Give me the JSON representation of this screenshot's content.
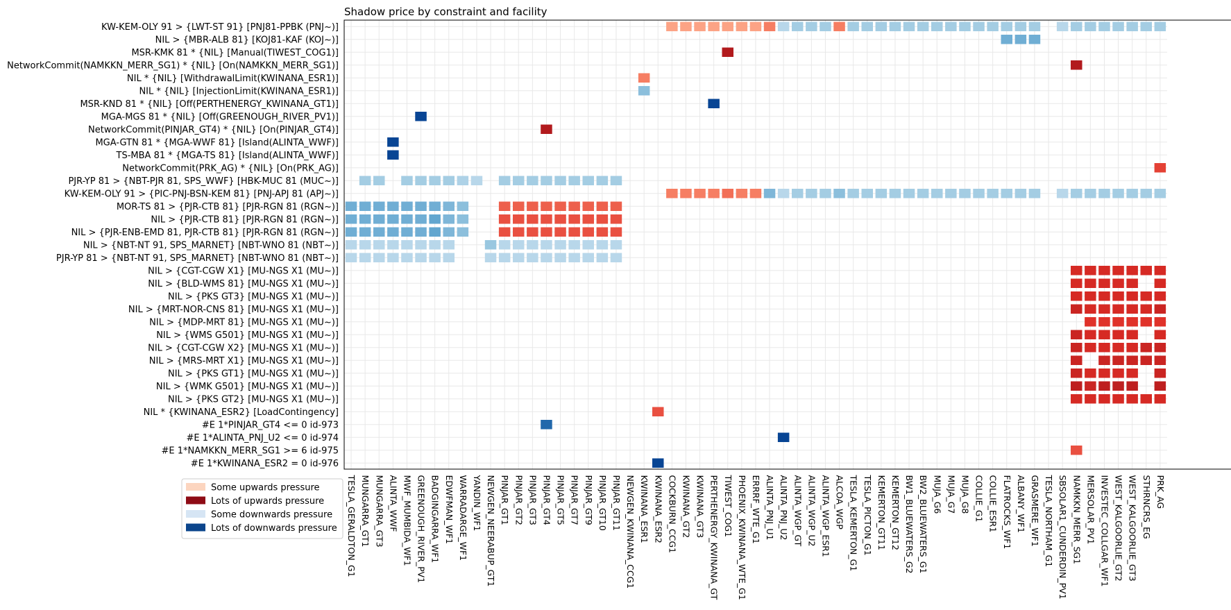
{
  "chart_data": {
    "type": "heatmap",
    "title": "Shadow price by constraint and facility",
    "rows": [
      "KW-KEM-OLY 91 > {LWT-ST 91} [PNJ81-PPBK (PNJ~)]",
      "NIL > {MBR-ALB 81} [KOJ81-KAF (KOJ~)]",
      "MSR-KMK 81 * {NIL} [Manual(TIWEST_COG1)]",
      "NetworkCommit(NAMKKN_MERR_SG1) * {NIL} [On(NAMKKN_MERR_SG1)]",
      "NIL * {NIL} [WithdrawalLimit(KWINANA_ESR1)]",
      "NIL * {NIL} [InjectionLimit(KWINANA_ESR1)]",
      "MSR-KND 81 * {NIL} [Off(PERTHENERGY_KWINANA_GT1)]",
      "MGA-MGS 81 * {NIL} [Off(GREENOUGH_RIVER_PV1)]",
      "NetworkCommit(PINJAR_GT4) * {NIL} [On(PINJAR_GT4)]",
      "MGA-GTN 81 * {MGA-WWF 81} [Island(ALINTA_WWF)]",
      "TS-MBA 81 * {MGA-TS 81} [Island(ALINTA_WWF)]",
      "NetworkCommit(PRK_AG) * {NIL} [On(PRK_AG)]",
      "PJR-YP 81 > {NBT-PJR 81, SPS_WWF} [HBK-MUC 81 (MUC~)]",
      "KW-KEM-OLY 91 > {PIC-PNJ-BSN-KEM 81} [PNJ-APJ 81 (APJ~)]",
      "MOR-TS 81 > {PJR-CTB 81} [PJR-RGN 81 (RGN~)]",
      "NIL > {PJR-CTB 81} [PJR-RGN 81 (RGN~)]",
      "NIL > {PJR-ENB-EMD 81, PJR-CTB 81} [PJR-RGN 81 (RGN~)]",
      "NIL > {NBT-NT 91, SPS_MARNET} [NBT-WNO 81 (NBT~)]",
      "PJR-YP 81 > {NBT-NT 91, SPS_MARNET} [NBT-WNO 81 (NBT~)]",
      "NIL > {CGT-CGW X1} [MU-NGS X1 (MU~)]",
      "NIL > {BLD-WMS 81} [MU-NGS X1 (MU~)]",
      "NIL > {PKS GT3} [MU-NGS X1 (MU~)]",
      "NIL > {MRT-NOR-CNS 81} [MU-NGS X1 (MU~)]",
      "NIL > {MDP-MRT 81} [MU-NGS X1 (MU~)]",
      "NIL > {WMS G501} [MU-NGS X1 (MU~)]",
      "NIL > {CGT-CGW X2} [MU-NGS X1 (MU~)]",
      "NIL > {MRS-MRT X1} [MU-NGS X1 (MU~)]",
      "NIL > {PKS GT1} [MU-NGS X1 (MU~)]",
      "NIL > {WMK G501} [MU-NGS X1 (MU~)]",
      "NIL > {PKS GT2} [MU-NGS X1 (MU~)]",
      "NIL * {KWINANA_ESR2} [LoadContingency]",
      "#E 1*PINJAR_GT4 <= 0 id-973",
      "#E 1*ALINTA_PNJ_U2 <= 0 id-974",
      "#E 1*NAMKKN_MERR_SG1 >= 6 id-975",
      "#E 1*KWINANA_ESR2 = 0 id-976"
    ],
    "columns": [
      "TESLA_GERALDTON_G1",
      "MUNGARRA_GT1",
      "MUNGARRA_GT3",
      "ALINTA_WWF",
      "MWF_MUMBIDA_WF1",
      "GREENOUGH_RIVER_PV1",
      "BADGINGARRA_WF1",
      "EDWFMAN_WF1",
      "WARRADARGE_WF1",
      "YANDIN_WF1",
      "NEWGEN_NEERABUP_GT1",
      "PINJAR_GT1",
      "PINJAR_GT2",
      "PINJAR_GT3",
      "PINJAR_GT4",
      "PINJAR_GT5",
      "PINJAR_GT7",
      "PINJAR_GT9",
      "PINJAR_GT10",
      "PINJAR_GT11",
      "NEWGEN_KWINANA_CCG1",
      "KWINANA_ESR1",
      "KWINANA_ESR2",
      "COCKBURN_CCG1",
      "KWINANA_GT2",
      "KWINANA_GT3",
      "PERTHENERGY_KWINANA_GT",
      "TIWEST_COG1",
      "PHOENIX_KWINANA_WTE_G1",
      "ERRRF_WTE_G1",
      "ALINTA_PNJ_U1",
      "ALINTA_PNJ_U2",
      "ALINTA_WGP_GT",
      "ALINTA_WGP_U2",
      "ALINTA_WGP_ESR1",
      "ALCOA_WGP",
      "TESLA_KEMERTON_G1",
      "TESLA_PICTON_G1",
      "KEMERTON_GT11",
      "KEMERTON_GT12",
      "BW1_BLUEWATERS_G2",
      "BW2_BLUEWATERS_G1",
      "MUJA_G6",
      "MUJA_G7",
      "MUJA_G8",
      "COLLIE_G1",
      "COLLIE_ESR1",
      "FLATROCKS_WF1",
      "ALBANY_WF1",
      "GRASMERE_WF1",
      "TESLA_NORTHAM_G1",
      "SBSOLAR1_CUNDERDIN_PV1",
      "NAMKKN_MERR_SG1",
      "MERSOLAR_PV1",
      "INVESTEC_COLLGAR_WF1",
      "WEST_KALGOORLIE_GT2",
      "WEST_KALGOORLIE_GT3",
      "STHRNCRS_EG",
      "PRK_AG"
    ],
    "legend": [
      {
        "label": "Some upwards pressure",
        "color": "#fcd5bf"
      },
      {
        "label": "Lots of upwards pressure",
        "color": "#8e0b15"
      },
      {
        "label": "Some downwards pressure",
        "color": "#d6e5f4"
      },
      {
        "label": "Lots of downwards pressure",
        "color": "#0b458c"
      }
    ],
    "legend_position": "lower-left",
    "grid": true,
    "value_scale": "diverging: negative = upwards pressure (reds), positive = downwards pressure (blues); magnitude 0-1",
    "cells": [
      [
        0,
        23,
        -0.25
      ],
      [
        0,
        24,
        -0.25
      ],
      [
        0,
        25,
        -0.25
      ],
      [
        0,
        26,
        -0.25
      ],
      [
        0,
        27,
        -0.25
      ],
      [
        0,
        28,
        -0.25
      ],
      [
        0,
        29,
        -0.25
      ],
      [
        0,
        30,
        -0.4
      ],
      [
        0,
        31,
        0.2
      ],
      [
        0,
        32,
        0.3
      ],
      [
        0,
        33,
        0.3
      ],
      [
        0,
        34,
        0.3
      ],
      [
        0,
        35,
        -0.4
      ],
      [
        0,
        36,
        0.3
      ],
      [
        0,
        37,
        0.3
      ],
      [
        0,
        38,
        0.3
      ],
      [
        0,
        39,
        0.3
      ],
      [
        0,
        40,
        0.3
      ],
      [
        0,
        41,
        0.3
      ],
      [
        0,
        42,
        0.3
      ],
      [
        0,
        43,
        0.3
      ],
      [
        0,
        44,
        0.3
      ],
      [
        0,
        45,
        0.3
      ],
      [
        0,
        46,
        0.3
      ],
      [
        0,
        47,
        0.3
      ],
      [
        0,
        48,
        0.3
      ],
      [
        0,
        49,
        0.3
      ],
      [
        0,
        51,
        0.2
      ],
      [
        0,
        52,
        0.3
      ],
      [
        0,
        53,
        0.3
      ],
      [
        0,
        54,
        0.3
      ],
      [
        0,
        55,
        0.3
      ],
      [
        0,
        56,
        0.3
      ],
      [
        0,
        57,
        0.3
      ],
      [
        0,
        58,
        0.3
      ],
      [
        1,
        47,
        0.5
      ],
      [
        1,
        48,
        0.5
      ],
      [
        1,
        49,
        0.5
      ],
      [
        2,
        27,
        -0.85
      ],
      [
        3,
        52,
        -0.85
      ],
      [
        4,
        21,
        -0.4
      ],
      [
        5,
        21,
        0.4
      ],
      [
        6,
        26,
        1.0
      ],
      [
        7,
        5,
        1.0
      ],
      [
        8,
        14,
        -0.85
      ],
      [
        9,
        3,
        1.0
      ],
      [
        10,
        3,
        1.0
      ],
      [
        11,
        58,
        -0.6
      ],
      [
        12,
        1,
        0.3
      ],
      [
        12,
        2,
        0.3
      ],
      [
        12,
        4,
        0.3
      ],
      [
        12,
        5,
        0.3
      ],
      [
        12,
        6,
        0.3
      ],
      [
        12,
        7,
        0.3
      ],
      [
        12,
        8,
        0.25
      ],
      [
        12,
        9,
        0.2
      ],
      [
        12,
        11,
        0.3
      ],
      [
        12,
        12,
        0.3
      ],
      [
        12,
        13,
        0.3
      ],
      [
        12,
        14,
        0.3
      ],
      [
        12,
        15,
        0.3
      ],
      [
        12,
        16,
        0.3
      ],
      [
        12,
        17,
        0.3
      ],
      [
        12,
        18,
        0.3
      ],
      [
        12,
        19,
        0.3
      ],
      [
        13,
        23,
        -0.4
      ],
      [
        13,
        24,
        -0.4
      ],
      [
        13,
        25,
        -0.4
      ],
      [
        13,
        26,
        -0.4
      ],
      [
        13,
        27,
        -0.45
      ],
      [
        13,
        28,
        -0.4
      ],
      [
        13,
        29,
        -0.4
      ],
      [
        13,
        30,
        0.45
      ],
      [
        13,
        31,
        0.2
      ],
      [
        13,
        32,
        0.3
      ],
      [
        13,
        33,
        0.3
      ],
      [
        13,
        34,
        0.3
      ],
      [
        13,
        35,
        0.4
      ],
      [
        13,
        36,
        0.3
      ],
      [
        13,
        37,
        0.3
      ],
      [
        13,
        38,
        0.3
      ],
      [
        13,
        39,
        0.3
      ],
      [
        13,
        40,
        0.3
      ],
      [
        13,
        41,
        0.3
      ],
      [
        13,
        42,
        0.3
      ],
      [
        13,
        43,
        0.3
      ],
      [
        13,
        44,
        0.3
      ],
      [
        13,
        45,
        0.3
      ],
      [
        13,
        46,
        0.3
      ],
      [
        13,
        47,
        0.3
      ],
      [
        13,
        48,
        0.3
      ],
      [
        13,
        49,
        0.3
      ],
      [
        13,
        51,
        0.2
      ],
      [
        13,
        52,
        0.3
      ],
      [
        13,
        53,
        0.3
      ],
      [
        13,
        54,
        0.3
      ],
      [
        13,
        55,
        0.3
      ],
      [
        13,
        56,
        0.3
      ],
      [
        13,
        57,
        0.3
      ],
      [
        13,
        58,
        0.3
      ],
      [
        14,
        0,
        0.5
      ],
      [
        14,
        1,
        0.5
      ],
      [
        14,
        2,
        0.5
      ],
      [
        14,
        3,
        0.5
      ],
      [
        14,
        4,
        0.5
      ],
      [
        14,
        5,
        0.5
      ],
      [
        14,
        6,
        0.5
      ],
      [
        14,
        7,
        0.45
      ],
      [
        14,
        8,
        0.4
      ],
      [
        14,
        11,
        -0.5
      ],
      [
        14,
        12,
        -0.5
      ],
      [
        14,
        13,
        -0.5
      ],
      [
        14,
        14,
        -0.5
      ],
      [
        14,
        15,
        -0.5
      ],
      [
        14,
        16,
        -0.5
      ],
      [
        14,
        17,
        -0.5
      ],
      [
        14,
        18,
        -0.5
      ],
      [
        14,
        19,
        -0.5
      ],
      [
        15,
        0,
        0.5
      ],
      [
        15,
        1,
        0.5
      ],
      [
        15,
        2,
        0.5
      ],
      [
        15,
        3,
        0.5
      ],
      [
        15,
        4,
        0.5
      ],
      [
        15,
        5,
        0.5
      ],
      [
        15,
        6,
        0.55
      ],
      [
        15,
        7,
        0.45
      ],
      [
        15,
        8,
        0.4
      ],
      [
        15,
        11,
        -0.55
      ],
      [
        15,
        12,
        -0.55
      ],
      [
        15,
        13,
        -0.55
      ],
      [
        15,
        14,
        -0.55
      ],
      [
        15,
        15,
        -0.55
      ],
      [
        15,
        16,
        -0.55
      ],
      [
        15,
        17,
        -0.55
      ],
      [
        15,
        18,
        -0.55
      ],
      [
        15,
        19,
        -0.55
      ],
      [
        16,
        0,
        0.5
      ],
      [
        16,
        1,
        0.5
      ],
      [
        16,
        2,
        0.5
      ],
      [
        16,
        3,
        0.5
      ],
      [
        16,
        4,
        0.5
      ],
      [
        16,
        5,
        0.5
      ],
      [
        16,
        6,
        0.55
      ],
      [
        16,
        7,
        0.45
      ],
      [
        16,
        8,
        0.4
      ],
      [
        16,
        11,
        -0.55
      ],
      [
        16,
        12,
        -0.55
      ],
      [
        16,
        13,
        -0.55
      ],
      [
        16,
        14,
        -0.55
      ],
      [
        16,
        15,
        -0.55
      ],
      [
        16,
        16,
        -0.55
      ],
      [
        16,
        17,
        -0.55
      ],
      [
        16,
        18,
        -0.55
      ],
      [
        16,
        19,
        -0.55
      ],
      [
        17,
        0,
        0.2
      ],
      [
        17,
        1,
        0.2
      ],
      [
        17,
        2,
        0.2
      ],
      [
        17,
        3,
        0.2
      ],
      [
        17,
        4,
        0.2
      ],
      [
        17,
        5,
        0.2
      ],
      [
        17,
        6,
        0.2
      ],
      [
        17,
        7,
        0.2
      ],
      [
        17,
        10,
        0.35
      ],
      [
        17,
        11,
        0.2
      ],
      [
        17,
        12,
        0.2
      ],
      [
        17,
        13,
        0.2
      ],
      [
        17,
        14,
        0.2
      ],
      [
        17,
        15,
        0.2
      ],
      [
        17,
        16,
        0.2
      ],
      [
        17,
        17,
        0.2
      ],
      [
        17,
        18,
        0.2
      ],
      [
        17,
        19,
        0.2
      ],
      [
        18,
        0,
        0.2
      ],
      [
        18,
        1,
        0.2
      ],
      [
        18,
        2,
        0.2
      ],
      [
        18,
        3,
        0.2
      ],
      [
        18,
        4,
        0.2
      ],
      [
        18,
        5,
        0.2
      ],
      [
        18,
        6,
        0.2
      ],
      [
        18,
        7,
        0.2
      ],
      [
        18,
        10,
        0.2
      ],
      [
        18,
        11,
        0.2
      ],
      [
        18,
        12,
        0.2
      ],
      [
        18,
        13,
        0.2
      ],
      [
        18,
        14,
        0.2
      ],
      [
        18,
        15,
        0.2
      ],
      [
        18,
        16,
        0.2
      ],
      [
        18,
        17,
        0.2
      ],
      [
        18,
        18,
        0.2
      ],
      [
        18,
        19,
        0.2
      ],
      [
        19,
        52,
        -0.7
      ],
      [
        19,
        53,
        -0.7
      ],
      [
        19,
        54,
        -0.7
      ],
      [
        19,
        55,
        -0.7
      ],
      [
        19,
        56,
        -0.7
      ],
      [
        19,
        57,
        -0.7
      ],
      [
        19,
        58,
        -0.7
      ],
      [
        20,
        52,
        -0.7
      ],
      [
        20,
        53,
        -0.7
      ],
      [
        20,
        54,
        -0.7
      ],
      [
        20,
        55,
        -0.7
      ],
      [
        20,
        56,
        -0.7
      ],
      [
        20,
        58,
        -0.7
      ],
      [
        21,
        52,
        -0.7
      ],
      [
        21,
        53,
        -0.7
      ],
      [
        21,
        54,
        -0.7
      ],
      [
        21,
        55,
        -0.7
      ],
      [
        21,
        56,
        -0.7
      ],
      [
        21,
        57,
        -0.7
      ],
      [
        21,
        58,
        -0.7
      ],
      [
        22,
        52,
        -0.75
      ],
      [
        22,
        53,
        -0.7
      ],
      [
        22,
        54,
        -0.7
      ],
      [
        22,
        55,
        -0.7
      ],
      [
        22,
        56,
        -0.7
      ],
      [
        22,
        57,
        -0.7
      ],
      [
        22,
        58,
        -0.75
      ],
      [
        23,
        53,
        -0.65
      ],
      [
        23,
        54,
        -0.65
      ],
      [
        23,
        55,
        -0.65
      ],
      [
        23,
        56,
        -0.65
      ],
      [
        23,
        57,
        -0.65
      ],
      [
        23,
        58,
        -0.65
      ],
      [
        24,
        52,
        -0.75
      ],
      [
        24,
        53,
        -0.7
      ],
      [
        24,
        54,
        -0.7
      ],
      [
        24,
        55,
        -0.7
      ],
      [
        24,
        56,
        -0.7
      ],
      [
        24,
        58,
        -0.7
      ],
      [
        25,
        52,
        -0.75
      ],
      [
        25,
        53,
        -0.7
      ],
      [
        25,
        54,
        -0.7
      ],
      [
        25,
        55,
        -0.7
      ],
      [
        25,
        56,
        -0.7
      ],
      [
        25,
        57,
        -0.75
      ],
      [
        25,
        58,
        -0.75
      ],
      [
        26,
        52,
        -0.75
      ],
      [
        26,
        54,
        -0.75
      ],
      [
        26,
        55,
        -0.75
      ],
      [
        26,
        56,
        -0.75
      ],
      [
        26,
        57,
        -0.75
      ],
      [
        26,
        58,
        -0.75
      ],
      [
        27,
        52,
        -0.75
      ],
      [
        27,
        53,
        -0.7
      ],
      [
        27,
        54,
        -0.7
      ],
      [
        27,
        55,
        -0.7
      ],
      [
        27,
        56,
        -0.7
      ],
      [
        27,
        58,
        -0.75
      ],
      [
        28,
        52,
        -0.8
      ],
      [
        28,
        53,
        -0.75
      ],
      [
        28,
        54,
        -0.8
      ],
      [
        28,
        55,
        -0.8
      ],
      [
        28,
        56,
        -0.8
      ],
      [
        28,
        58,
        -0.8
      ],
      [
        29,
        52,
        -0.7
      ],
      [
        29,
        53,
        -0.7
      ],
      [
        29,
        54,
        -0.7
      ],
      [
        29,
        55,
        -0.7
      ],
      [
        29,
        56,
        -0.7
      ],
      [
        29,
        57,
        -0.7
      ],
      [
        29,
        58,
        -0.7
      ],
      [
        30,
        22,
        -0.55
      ],
      [
        31,
        14,
        0.85
      ],
      [
        32,
        31,
        1.0
      ],
      [
        33,
        52,
        -0.55
      ],
      [
        34,
        22,
        1.0
      ]
    ]
  }
}
